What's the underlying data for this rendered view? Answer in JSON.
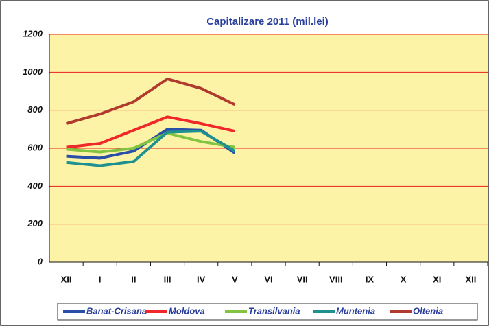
{
  "chart_data": {
    "type": "line",
    "title": "Capitalizare 2011 (mil.lei)",
    "categories": [
      "XII",
      "I",
      "II",
      "III",
      "IV",
      "V",
      "VI",
      "VII",
      "VIII",
      "IX",
      "X",
      "XI",
      "XII"
    ],
    "series": [
      {
        "name": "Banat-Crisana",
        "color": "#2a4fa8",
        "values": [
          558,
          548,
          585,
          700,
          695,
          575,
          null,
          null,
          null,
          null,
          null,
          null,
          null
        ]
      },
      {
        "name": "Moldova",
        "color": "#f0282a",
        "values": [
          605,
          625,
          695,
          765,
          730,
          690,
          null,
          null,
          null,
          null,
          null,
          null,
          null
        ]
      },
      {
        "name": "Transilvania",
        "color": "#82c341",
        "values": [
          595,
          580,
          600,
          680,
          635,
          605,
          null,
          null,
          null,
          null,
          null,
          null,
          null
        ]
      },
      {
        "name": "Muntenia",
        "color": "#1e9090",
        "values": [
          525,
          508,
          530,
          685,
          690,
          585,
          null,
          null,
          null,
          null,
          null,
          null,
          null
        ]
      },
      {
        "name": "Oltenia",
        "color": "#b03a2e",
        "values": [
          730,
          780,
          845,
          965,
          915,
          830,
          null,
          null,
          null,
          null,
          null,
          null,
          null
        ]
      }
    ],
    "ylim": [
      0,
      1200
    ],
    "yticks": [
      0,
      200,
      400,
      600,
      800,
      1000,
      1200
    ],
    "grid": true,
    "grid_color": "#e8201e",
    "plot_background": "#fcf3a6",
    "legend": "bottom"
  }
}
